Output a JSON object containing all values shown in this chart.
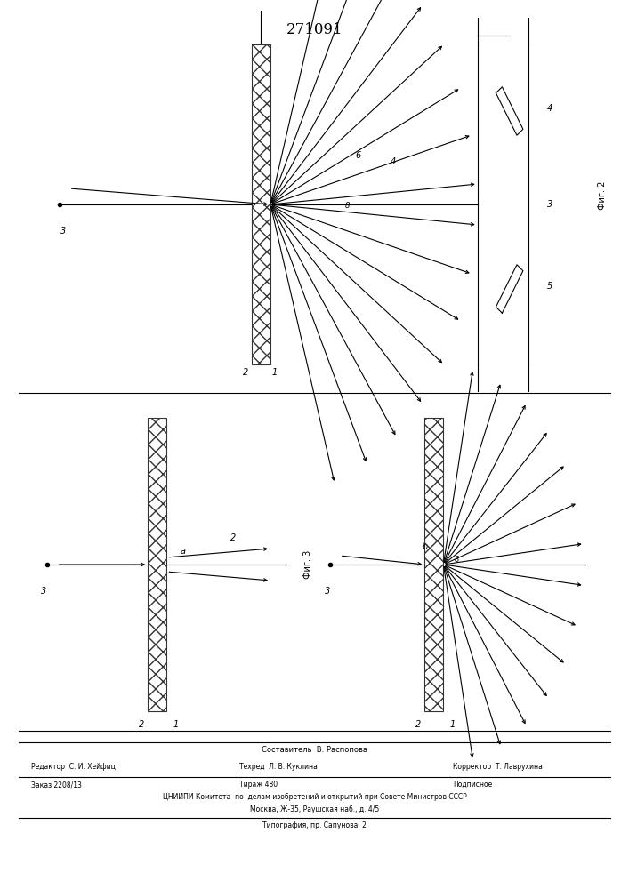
{
  "title": "271091",
  "title_fontsize": 12,
  "bg_color": "#ffffff",
  "line_color": "#000000",
  "footer": {
    "composer_label": "Составитель",
    "composer_name": "В. Распопова",
    "editor_label": "Редактор",
    "editor_name": "С. И. Хейфиц",
    "techred_label": "Техред",
    "techred_name": "Л. В. Куклина",
    "corrector_label": "Корректор",
    "corrector_name": "Т. Лаврухина",
    "order": "Заказ 2208/13",
    "circulation": "Тираж 480",
    "subscription": "Подписное",
    "org": "ЦНИИПИ Комитета  по  делам изобретений и открытий при Совете Министров СССР",
    "address": "Москва, Ж-35, Раушская наб., д. 4/5",
    "print_house": "Типография, пр. Сапунова, 2"
  }
}
